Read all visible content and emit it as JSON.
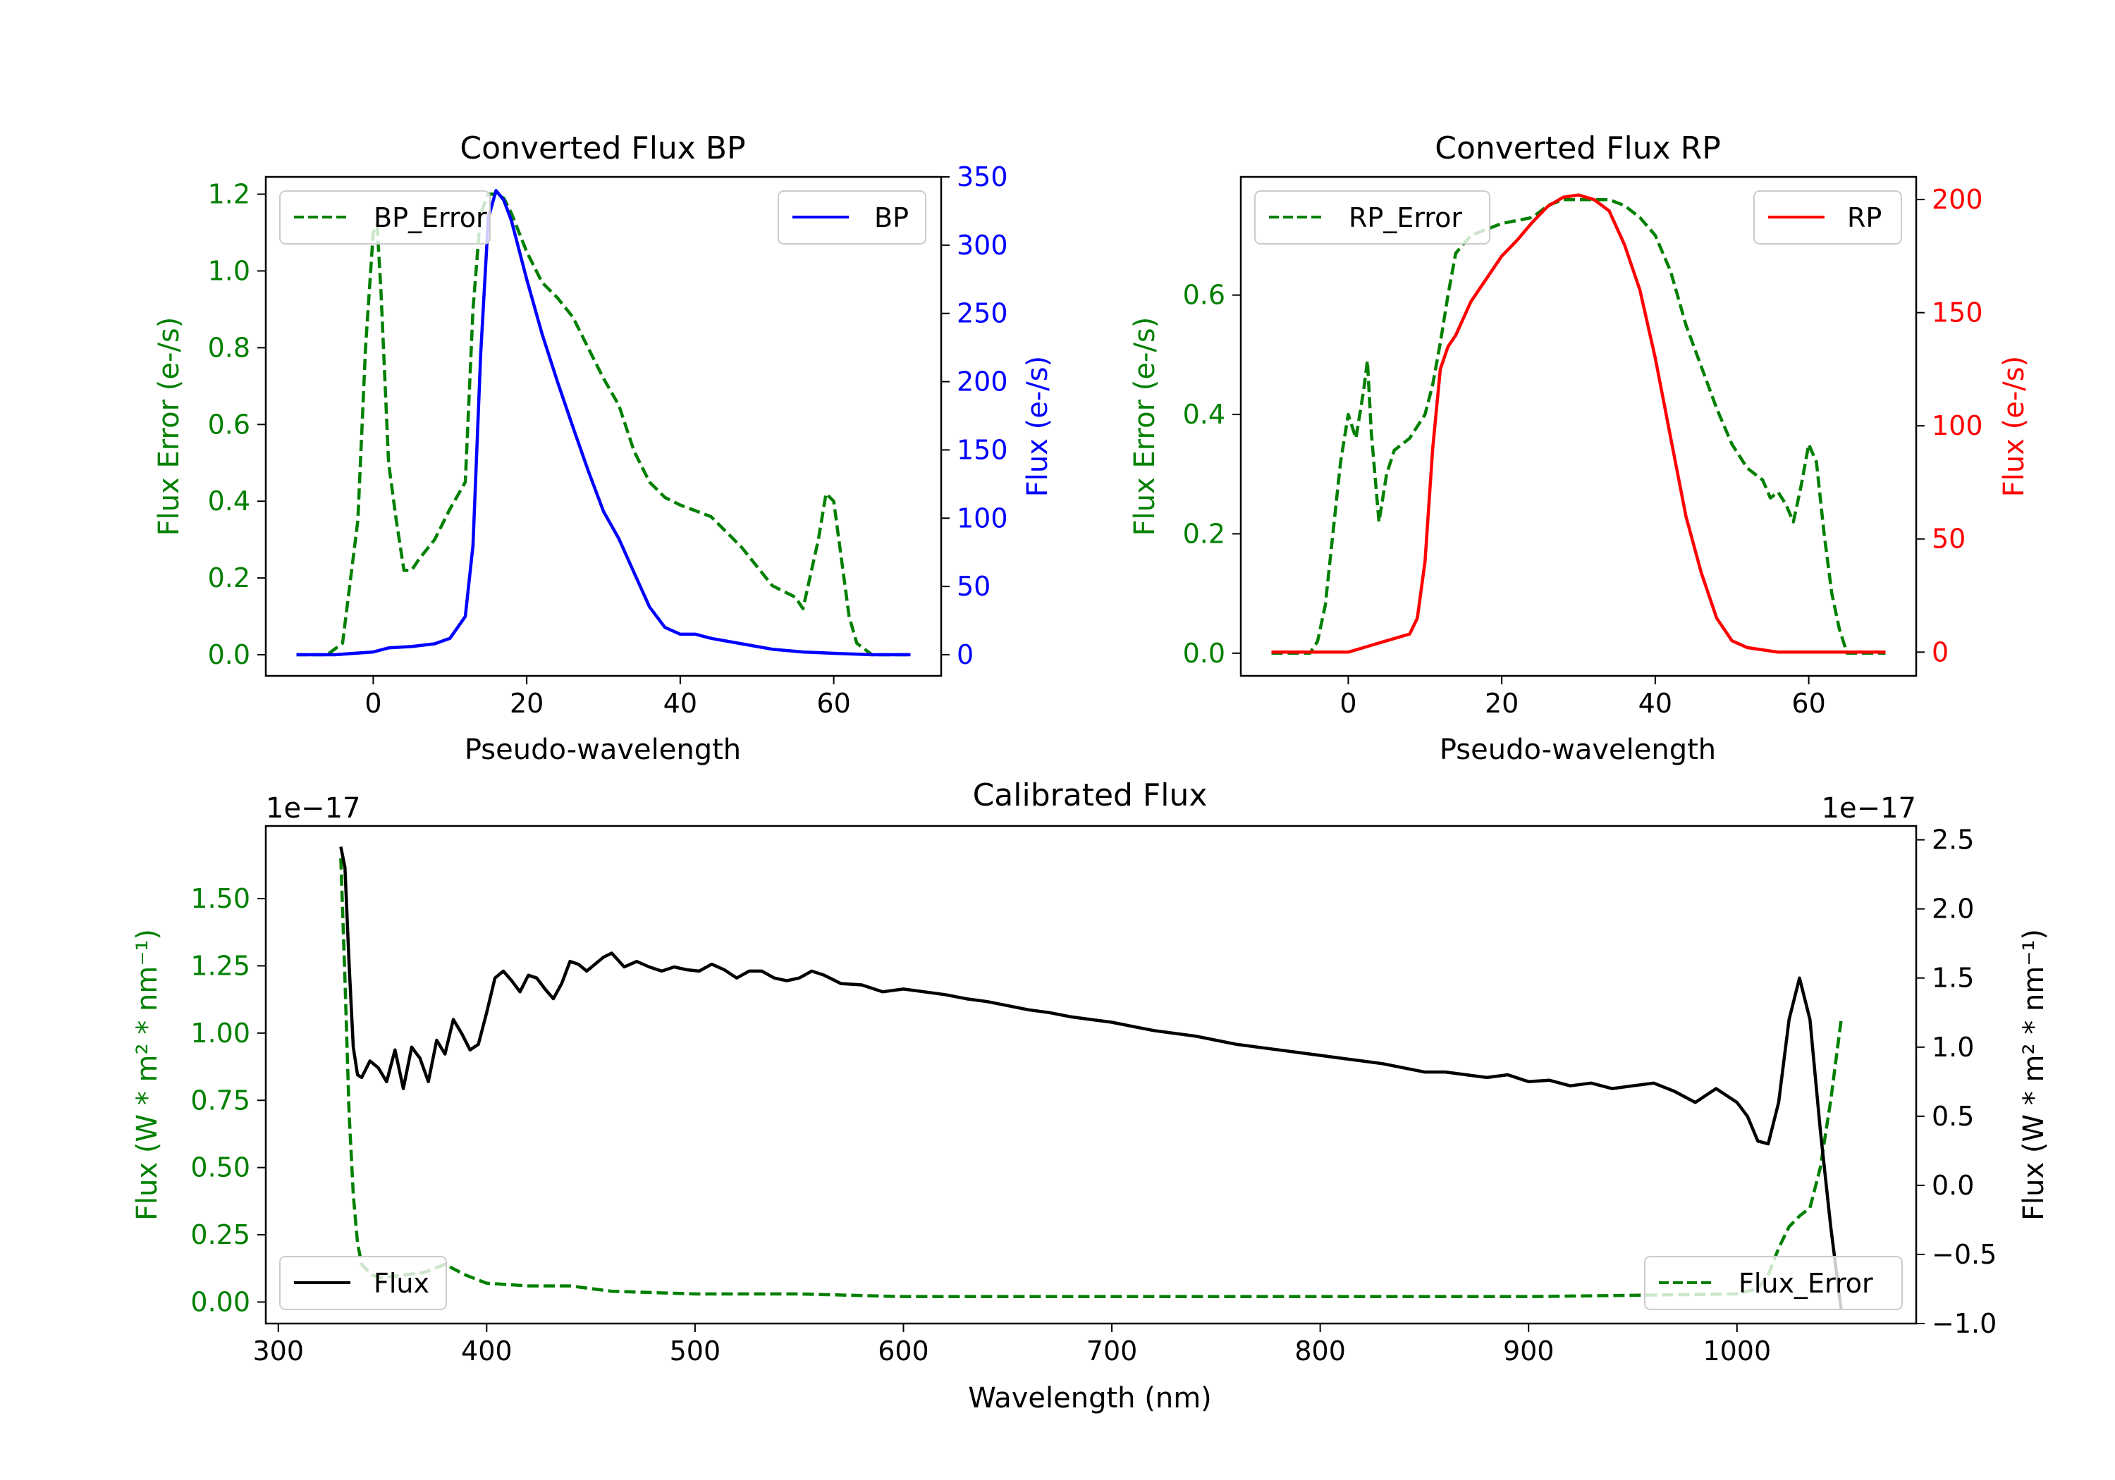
{
  "colors": {
    "green": "#008000",
    "blue": "#0000ff",
    "red": "#ff0000",
    "black": "#000000"
  },
  "chart_data": [
    {
      "type": "line",
      "title": "Converted Flux BP",
      "xlabel": "Pseudo-wavelength",
      "ylabel_left": "Flux Error (e-/s)",
      "ylabel_right": "Flux (e-/s)",
      "xlim": [
        -14,
        74
      ],
      "ylim_left": [
        -0.055,
        1.245
      ],
      "ylim_right": [
        -15.5,
        350
      ],
      "x_ticks": [
        0,
        20,
        40,
        60
      ],
      "x_tick_labels": [
        "0",
        "20",
        "40",
        "60"
      ],
      "y_left_ticks": [
        0.0,
        0.2,
        0.4,
        0.6,
        0.8,
        1.0,
        1.2
      ],
      "y_left_tick_labels": [
        "0.0",
        "0.2",
        "0.4",
        "0.6",
        "0.8",
        "1.0",
        "1.2"
      ],
      "y_right_ticks": [
        0,
        50,
        100,
        150,
        200,
        250,
        300,
        350
      ],
      "y_right_tick_labels": [
        "0",
        "50",
        "100",
        "150",
        "200",
        "250",
        "300",
        "350"
      ],
      "legend_left": "BP_Error",
      "legend_right": "BP",
      "series": [
        {
          "name": "BP_Error",
          "axis": "left",
          "color": "#008000",
          "style": "dashed",
          "x": [
            -10,
            -6,
            -4,
            -2,
            -1,
            0,
            0.5,
            1,
            2,
            3,
            4,
            5,
            6,
            8,
            10,
            12,
            13,
            14,
            15,
            16,
            17,
            18,
            20,
            22,
            24,
            26,
            28,
            30,
            32,
            34,
            36,
            38,
            40,
            44,
            48,
            52,
            55,
            56,
            58,
            59,
            60,
            61,
            62,
            63,
            65,
            70
          ],
          "y": [
            0.0,
            0.0,
            0.03,
            0.35,
            0.8,
            1.1,
            1.12,
            0.95,
            0.5,
            0.35,
            0.22,
            0.22,
            0.25,
            0.3,
            0.38,
            0.45,
            0.9,
            1.15,
            1.2,
            1.2,
            1.19,
            1.15,
            1.05,
            0.97,
            0.93,
            0.88,
            0.8,
            0.72,
            0.65,
            0.53,
            0.45,
            0.41,
            0.39,
            0.36,
            0.28,
            0.18,
            0.15,
            0.12,
            0.3,
            0.42,
            0.4,
            0.25,
            0.1,
            0.03,
            0.0,
            0.0
          ]
        },
        {
          "name": "BP",
          "axis": "right",
          "color": "#0000ff",
          "style": "solid",
          "x": [
            -10,
            -5,
            0,
            2,
            5,
            8,
            10,
            12,
            13,
            14,
            15,
            16,
            17,
            18,
            20,
            22,
            24,
            26,
            28,
            30,
            32,
            34,
            36,
            38,
            40,
            42,
            44,
            48,
            52,
            56,
            60,
            65,
            70
          ],
          "y": [
            0,
            0,
            2,
            5,
            6,
            8,
            12,
            28,
            80,
            220,
            320,
            340,
            333,
            318,
            275,
            235,
            200,
            167,
            135,
            105,
            85,
            60,
            35,
            20,
            15,
            15,
            12,
            8,
            4,
            2,
            1,
            0,
            0
          ]
        }
      ]
    },
    {
      "type": "line",
      "title": "Converted Flux RP",
      "xlabel": "Pseudo-wavelength",
      "ylabel_left": "Flux Error (e-/s)",
      "ylabel_right": "Flux (e-/s)",
      "xlim": [
        -14,
        74
      ],
      "ylim_left": [
        -0.038,
        0.798
      ],
      "ylim_right": [
        -10.5,
        210
      ],
      "x_ticks": [
        0,
        20,
        40,
        60
      ],
      "x_tick_labels": [
        "0",
        "20",
        "40",
        "60"
      ],
      "y_left_ticks": [
        0.0,
        0.2,
        0.4,
        0.6
      ],
      "y_left_tick_labels": [
        "0.0",
        "0.2",
        "0.4",
        "0.6"
      ],
      "y_right_ticks": [
        0,
        50,
        100,
        150,
        200
      ],
      "y_right_tick_labels": [
        "0",
        "50",
        "100",
        "150",
        "200"
      ],
      "legend_left": "RP_Error",
      "legend_right": "RP",
      "series": [
        {
          "name": "RP_Error",
          "axis": "left",
          "color": "#008000",
          "style": "dashed",
          "x": [
            -10,
            -5,
            -4,
            -3,
            -2,
            -1,
            0,
            1,
            2,
            2.5,
            3,
            4,
            5,
            6,
            8,
            10,
            11,
            12,
            13,
            14,
            16,
            18,
            20,
            24,
            26,
            28,
            30,
            32,
            34,
            36,
            38,
            40,
            42,
            44,
            46,
            48,
            50,
            52,
            54,
            55,
            56,
            57,
            58,
            59,
            60,
            61,
            62,
            63,
            64,
            65,
            70
          ],
          "y": [
            0.0,
            0.0,
            0.02,
            0.08,
            0.2,
            0.32,
            0.4,
            0.36,
            0.44,
            0.49,
            0.37,
            0.22,
            0.3,
            0.34,
            0.36,
            0.4,
            0.45,
            0.52,
            0.6,
            0.67,
            0.7,
            0.71,
            0.72,
            0.73,
            0.75,
            0.76,
            0.76,
            0.76,
            0.76,
            0.75,
            0.73,
            0.7,
            0.64,
            0.55,
            0.48,
            0.41,
            0.35,
            0.31,
            0.29,
            0.26,
            0.27,
            0.25,
            0.22,
            0.28,
            0.35,
            0.32,
            0.2,
            0.1,
            0.04,
            0.0,
            0.0
          ]
        },
        {
          "name": "RP",
          "axis": "right",
          "color": "#ff0000",
          "style": "solid",
          "x": [
            -10,
            -5,
            0,
            2,
            5,
            8,
            9,
            10,
            11,
            12,
            13,
            14,
            16,
            18,
            20,
            22,
            24,
            26,
            28,
            30,
            32,
            34,
            36,
            38,
            40,
            42,
            44,
            46,
            48,
            50,
            52,
            54,
            56,
            58,
            60,
            65,
            70
          ],
          "y": [
            0,
            0,
            0,
            2,
            5,
            8,
            15,
            40,
            90,
            125,
            135,
            140,
            155,
            165,
            175,
            182,
            190,
            197,
            201,
            202,
            200,
            195,
            180,
            160,
            130,
            95,
            60,
            35,
            15,
            5,
            2,
            1,
            0,
            0,
            0,
            0,
            0
          ]
        }
      ]
    },
    {
      "type": "line",
      "title": "Calibrated Flux",
      "xlabel": "Wavelength (nm)",
      "ylabel_left": "Flux (W * m² * nm⁻¹)",
      "ylabel_right": "Flux (W * m² * nm⁻¹)",
      "offset_left": "1e−17",
      "offset_right": "1e−17",
      "xlim": [
        294,
        1086
      ],
      "ylim_left": [
        -0.08,
        1.77
      ],
      "ylim_right": [
        -1.0,
        2.6
      ],
      "x_ticks": [
        300,
        400,
        500,
        600,
        700,
        800,
        900,
        1000
      ],
      "x_tick_labels": [
        "300",
        "400",
        "500",
        "600",
        "700",
        "800",
        "900",
        "1000"
      ],
      "y_left_ticks": [
        0.0,
        0.25,
        0.5,
        0.75,
        1.0,
        1.25,
        1.5
      ],
      "y_left_tick_labels": [
        "0.00",
        "0.25",
        "0.50",
        "0.75",
        "1.00",
        "1.25",
        "1.50"
      ],
      "y_right_ticks": [
        -1.0,
        -0.5,
        0.0,
        0.5,
        1.0,
        1.5,
        2.0,
        2.5
      ],
      "y_right_tick_labels": [
        "−1.0",
        "−0.5",
        "0.0",
        "0.5",
        "1.0",
        "1.5",
        "2.0",
        "2.5"
      ],
      "legend_left": "Flux",
      "legend_right": "Flux_Error",
      "series": [
        {
          "name": "Flux_Error",
          "axis": "left",
          "color": "#008000",
          "style": "dashed",
          "x": [
            330,
            332,
            334,
            336,
            338,
            340,
            345,
            350,
            360,
            370,
            380,
            385,
            390,
            400,
            420,
            440,
            460,
            500,
            550,
            600,
            640,
            700,
            800,
            900,
            1000,
            1010,
            1015,
            1020,
            1025,
            1030,
            1035,
            1040,
            1045,
            1050
          ],
          "y": [
            1.65,
            1.2,
            0.7,
            0.4,
            0.22,
            0.14,
            0.1,
            0.09,
            0.1,
            0.11,
            0.14,
            0.12,
            0.1,
            0.07,
            0.06,
            0.06,
            0.04,
            0.03,
            0.03,
            0.02,
            0.02,
            0.02,
            0.02,
            0.02,
            0.03,
            0.05,
            0.1,
            0.2,
            0.28,
            0.32,
            0.35,
            0.5,
            0.75,
            1.05
          ]
        },
        {
          "name": "Flux",
          "axis": "right",
          "color": "#000000",
          "style": "solid",
          "x": [
            330,
            332,
            334,
            336,
            338,
            340,
            344,
            348,
            352,
            356,
            360,
            364,
            368,
            372,
            376,
            380,
            384,
            388,
            392,
            396,
            400,
            404,
            408,
            412,
            416,
            420,
            424,
            428,
            432,
            436,
            440,
            444,
            448,
            452,
            456,
            460,
            466,
            472,
            478,
            484,
            490,
            496,
            502,
            508,
            514,
            520,
            526,
            532,
            538,
            544,
            550,
            556,
            562,
            570,
            580,
            590,
            600,
            610,
            620,
            630,
            640,
            650,
            660,
            670,
            680,
            690,
            700,
            710,
            720,
            730,
            740,
            750,
            760,
            770,
            780,
            790,
            800,
            810,
            820,
            830,
            840,
            850,
            860,
            870,
            880,
            890,
            900,
            910,
            920,
            930,
            940,
            950,
            960,
            970,
            980,
            990,
            1000,
            1005,
            1010,
            1015,
            1020,
            1025,
            1030,
            1035,
            1040,
            1045,
            1050
          ],
          "y": [
            2.45,
            2.3,
            1.6,
            1.0,
            0.8,
            0.78,
            0.9,
            0.85,
            0.75,
            0.98,
            0.7,
            1.0,
            0.92,
            0.75,
            1.05,
            0.95,
            1.2,
            1.1,
            0.98,
            1.02,
            1.25,
            1.5,
            1.55,
            1.48,
            1.4,
            1.52,
            1.5,
            1.42,
            1.35,
            1.46,
            1.62,
            1.6,
            1.55,
            1.6,
            1.65,
            1.68,
            1.58,
            1.62,
            1.58,
            1.55,
            1.58,
            1.56,
            1.55,
            1.6,
            1.56,
            1.5,
            1.55,
            1.55,
            1.5,
            1.48,
            1.5,
            1.55,
            1.52,
            1.46,
            1.45,
            1.4,
            1.42,
            1.4,
            1.38,
            1.35,
            1.33,
            1.3,
            1.27,
            1.25,
            1.22,
            1.2,
            1.18,
            1.15,
            1.12,
            1.1,
            1.08,
            1.05,
            1.02,
            1.0,
            0.98,
            0.96,
            0.94,
            0.92,
            0.9,
            0.88,
            0.85,
            0.82,
            0.82,
            0.8,
            0.78,
            0.8,
            0.75,
            0.76,
            0.72,
            0.74,
            0.7,
            0.72,
            0.74,
            0.68,
            0.6,
            0.7,
            0.6,
            0.5,
            0.32,
            0.3,
            0.6,
            1.2,
            1.5,
            1.2,
            0.4,
            -0.3,
            -0.9
          ]
        }
      ]
    }
  ]
}
